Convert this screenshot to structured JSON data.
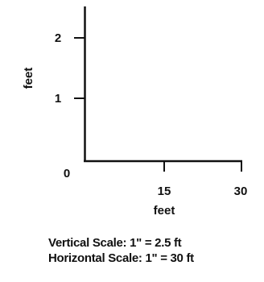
{
  "figure": {
    "y_axis": {
      "label": "feet",
      "ticks": [
        "0",
        "1",
        "2"
      ]
    },
    "x_axis": {
      "label": "feet",
      "ticks": [
        "15",
        "30"
      ]
    }
  },
  "scale_notes": {
    "vertical_label": "Vertical Scale:",
    "vertical_value": "1\" = 2.5 ft",
    "horizontal_label": "Horizontal Scale:",
    "horizontal_value": "1\" = 30 ft"
  }
}
